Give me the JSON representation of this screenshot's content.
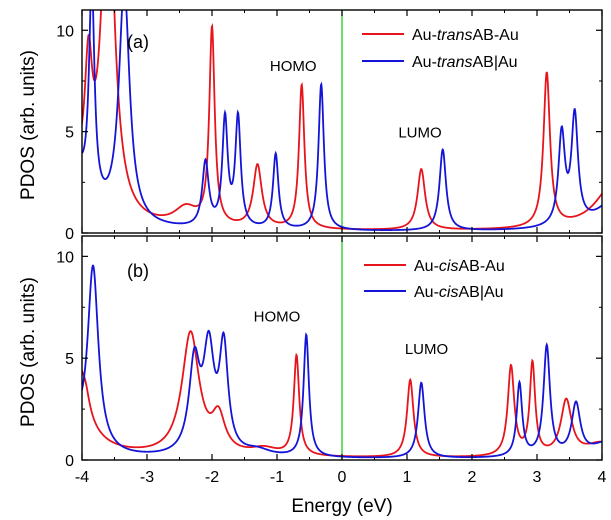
{
  "figure": {
    "xlabel": "Energy (eV)",
    "ylabel": "PDOS (arb. units)",
    "colors": {
      "red": "#e8141c",
      "blue": "#1414d8",
      "fermi": "#2fd12f",
      "axes": "#000000"
    }
  },
  "chart_data": [
    {
      "type": "line",
      "panel_label": "(a)",
      "xlim": [
        -4,
        4
      ],
      "ylim": [
        0,
        11
      ],
      "x_ticks": [
        "-4",
        "-3",
        "-2",
        "-1",
        "0",
        "1",
        "2",
        "3",
        "4"
      ],
      "y_ticks": [
        "0",
        "5",
        "10"
      ],
      "legend": {
        "placement": "top-right",
        "red": {
          "pre": "Au-",
          "ital": "trans",
          "post": "AB-Au"
        },
        "blue": {
          "pre": "Au-",
          "ital": "trans",
          "post": "AB|Au"
        }
      },
      "annotations": [
        {
          "text": "HOMO",
          "x": -0.75,
          "y": 8.0
        },
        {
          "text": "LUMO",
          "x": 1.2,
          "y": 4.7
        }
      ],
      "fermi_level": 0,
      "series": [
        {
          "color": "red",
          "baseline": 0.08,
          "peaks": [
            {
              "x": -4.4,
              "h": 14,
              "w": 0.16
            },
            {
              "x": -3.9,
              "h": 6,
              "w": 0.07
            },
            {
              "x": -3.6,
              "h": 17,
              "w": 0.12
            },
            {
              "x": -2.4,
              "h": 0.9,
              "w": 0.22
            },
            {
              "x": -2.0,
              "h": 9.7,
              "w": 0.05
            },
            {
              "x": -1.3,
              "h": 3.1,
              "w": 0.08
            },
            {
              "x": -0.62,
              "h": 7.1,
              "w": 0.05
            },
            {
              "x": 1.22,
              "h": 3.0,
              "w": 0.07
            },
            {
              "x": 3.15,
              "h": 7.6,
              "w": 0.06
            },
            {
              "x": 4.2,
              "h": 2.4,
              "w": 0.35
            }
          ]
        },
        {
          "color": "blue",
          "baseline": 0.05,
          "peaks": [
            {
              "x": -4.35,
              "h": 9,
              "w": 0.22
            },
            {
              "x": -3.85,
              "h": 10.6,
              "w": 0.05
            },
            {
              "x": -3.35,
              "h": 11.6,
              "w": 0.1
            },
            {
              "x": -2.1,
              "h": 3.2,
              "w": 0.06
            },
            {
              "x": -1.8,
              "h": 5.3,
              "w": 0.05
            },
            {
              "x": -1.6,
              "h": 5.4,
              "w": 0.05
            },
            {
              "x": -1.02,
              "h": 3.7,
              "w": 0.05
            },
            {
              "x": -0.32,
              "h": 7.2,
              "w": 0.05
            },
            {
              "x": 1.55,
              "h": 4.0,
              "w": 0.06
            },
            {
              "x": 3.38,
              "h": 4.5,
              "w": 0.06
            },
            {
              "x": 3.58,
              "h": 5.3,
              "w": 0.06
            },
            {
              "x": 4.3,
              "h": 2.0,
              "w": 0.35
            }
          ]
        }
      ]
    },
    {
      "type": "line",
      "panel_label": "(b)",
      "xlim": [
        -4,
        4
      ],
      "ylim": [
        0,
        11
      ],
      "x_ticks": [
        "-4",
        "-3",
        "-2",
        "-1",
        "0",
        "1",
        "2",
        "3",
        "4"
      ],
      "y_ticks": [
        "0",
        "5",
        "10"
      ],
      "legend": {
        "placement": "top-right",
        "red": {
          "pre": "Au-",
          "ital": "cis",
          "post": "AB-Au"
        },
        "blue": {
          "pre": "Au-",
          "ital": "cis",
          "post": "AB|Au"
        }
      },
      "annotations": [
        {
          "text": "HOMO",
          "x": -1.0,
          "y": 6.8
        },
        {
          "text": "LUMO",
          "x": 1.3,
          "y": 5.2
        }
      ],
      "fermi_level": 0,
      "series": [
        {
          "color": "red",
          "baseline": 0.08,
          "peaks": [
            {
              "x": -4.25,
              "h": 9,
              "w": 0.2
            },
            {
              "x": -3.95,
              "h": 1.0,
              "w": 0.08
            },
            {
              "x": -2.33,
              "h": 6.0,
              "w": 0.16
            },
            {
              "x": -1.9,
              "h": 1.7,
              "w": 0.12
            },
            {
              "x": -1.2,
              "h": 0.35,
              "w": 0.25
            },
            {
              "x": -0.7,
              "h": 4.9,
              "w": 0.05
            },
            {
              "x": 1.05,
              "h": 3.8,
              "w": 0.06
            },
            {
              "x": 2.6,
              "h": 4.4,
              "w": 0.06
            },
            {
              "x": 2.93,
              "h": 4.5,
              "w": 0.05
            },
            {
              "x": 3.45,
              "h": 2.7,
              "w": 0.1
            },
            {
              "x": 4.0,
              "h": 0.7,
              "w": 0.3
            }
          ]
        },
        {
          "color": "blue",
          "baseline": 0.05,
          "peaks": [
            {
              "x": -4.25,
              "h": 4,
              "w": 0.15
            },
            {
              "x": -3.83,
              "h": 9.0,
              "w": 0.1
            },
            {
              "x": -2.27,
              "h": 4.4,
              "w": 0.1
            },
            {
              "x": -2.05,
              "h": 4.9,
              "w": 0.1
            },
            {
              "x": -1.82,
              "h": 5.1,
              "w": 0.08
            },
            {
              "x": -1.3,
              "h": 0.3,
              "w": 0.25
            },
            {
              "x": -0.55,
              "h": 6.0,
              "w": 0.05
            },
            {
              "x": 1.22,
              "h": 3.7,
              "w": 0.06
            },
            {
              "x": 2.73,
              "h": 3.6,
              "w": 0.05
            },
            {
              "x": 3.15,
              "h": 5.4,
              "w": 0.06
            },
            {
              "x": 3.6,
              "h": 2.5,
              "w": 0.08
            },
            {
              "x": 4.1,
              "h": 0.8,
              "w": 0.3
            }
          ]
        }
      ]
    }
  ]
}
